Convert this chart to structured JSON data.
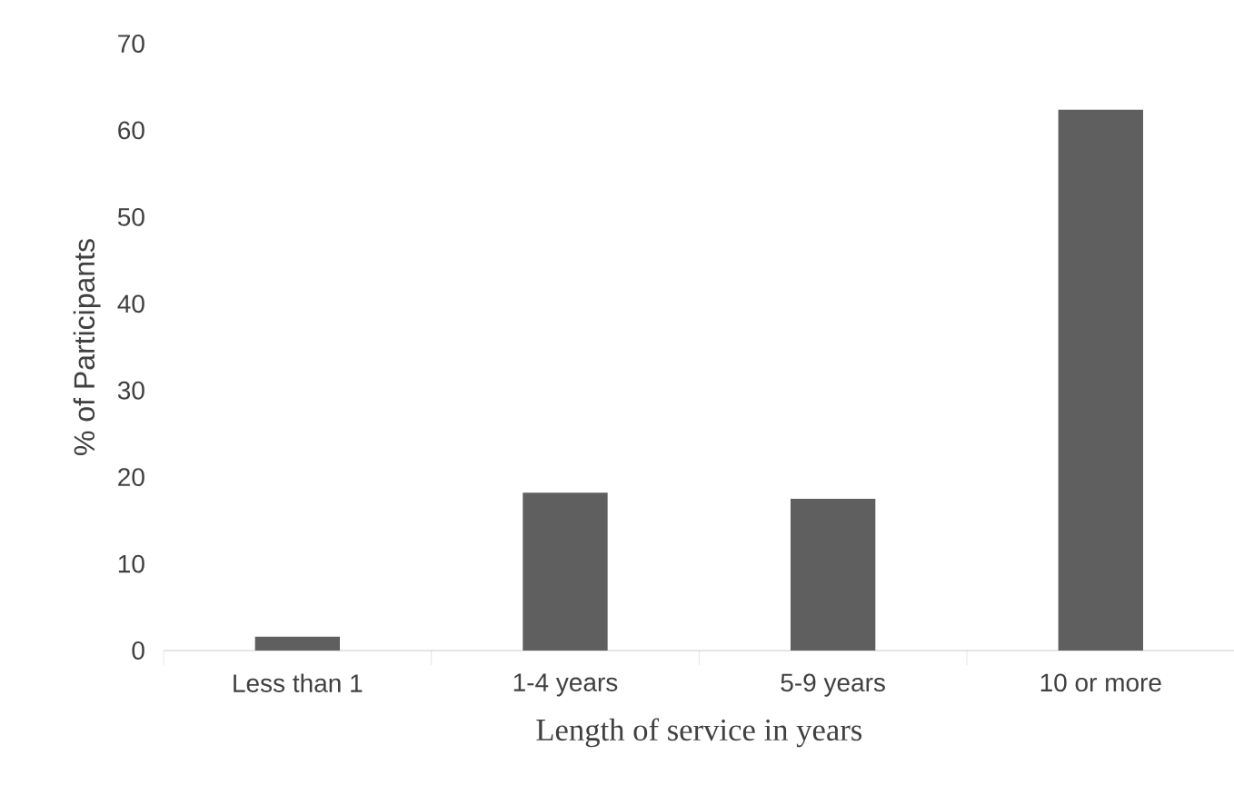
{
  "chart_data": {
    "type": "bar",
    "xlabel": "Length of service in years",
    "ylabel": "% of  Participants",
    "categories": [
      "Less than 1",
      "1-4 years",
      "5-9 years",
      "10 or more"
    ],
    "values": [
      1.6,
      18.2,
      17.5,
      62.4
    ],
    "color": "#5f5f5f",
    "ylim": [
      0,
      70
    ],
    "yticks": [
      0,
      10,
      20,
      30,
      40,
      50,
      60,
      70
    ],
    "grid": false
  }
}
